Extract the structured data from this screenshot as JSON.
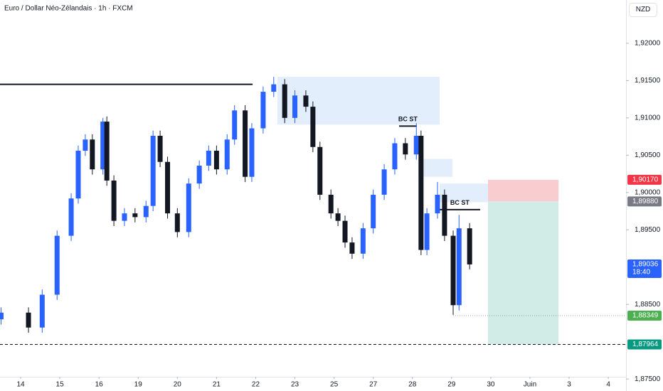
{
  "chart_data": {
    "type": "candlestick",
    "title": "Euro / Dollar Néo-Zélandais · 1h · FXCM",
    "currency": "NZD",
    "up_color": "#2962ff",
    "down_color": "#131722",
    "xlim": [
      -0.527,
      15.452
    ],
    "ylim": [
      1.8753,
      1.9258
    ],
    "xticks": [
      {
        "value": 0,
        "label": "14"
      },
      {
        "value": 1,
        "label": "15"
      },
      {
        "value": 2,
        "label": "16"
      },
      {
        "value": 3,
        "label": "19"
      },
      {
        "value": 4,
        "label": "20"
      },
      {
        "value": 5,
        "label": "21"
      },
      {
        "value": 6,
        "label": "22"
      },
      {
        "value": 7,
        "label": "23"
      },
      {
        "value": 8,
        "label": "25"
      },
      {
        "value": 9,
        "label": "27"
      },
      {
        "value": 10,
        "label": "28"
      },
      {
        "value": 11,
        "label": "29"
      },
      {
        "value": 12,
        "label": "30"
      },
      {
        "value": 13,
        "label": "Juin"
      },
      {
        "value": 14,
        "label": "3"
      },
      {
        "value": 15,
        "label": "4"
      }
    ],
    "yticks": [
      {
        "value": 1.92,
        "label": "1,92000"
      },
      {
        "value": 1.915,
        "label": "1,91500"
      },
      {
        "value": 1.91,
        "label": "1,91000"
      },
      {
        "value": 1.905,
        "label": "1,90500"
      },
      {
        "value": 1.9,
        "label": "1,90000"
      },
      {
        "value": 1.895,
        "label": "1,89500"
      },
      {
        "value": 1.885,
        "label": "1,88500"
      },
      {
        "value": 1.875,
        "label": "1,87500"
      }
    ],
    "x": [
      -0.5,
      0.2,
      0.55,
      0.93,
      1.29,
      1.47,
      1.65,
      1.83,
      2.1,
      2.2,
      2.38,
      2.65,
      2.92,
      3.2,
      3.38,
      3.56,
      3.75,
      4.0,
      4.29,
      4.56,
      4.8,
      5.0,
      5.27,
      5.46,
      5.73,
      5.9,
      6.19,
      6.46,
      6.74,
      7.0,
      7.28,
      7.46,
      7.64,
      7.92,
      8.1,
      8.28,
      8.46,
      8.74,
      9.0,
      9.28,
      9.55,
      9.82,
      10.1,
      10.22,
      10.37,
      10.64,
      10.82,
      11.04,
      11.19,
      11.46
    ],
    "open": [
      1.883,
      1.8839,
      1.8819,
      1.8863,
      1.8942,
      1.8992,
      1.9056,
      1.9071,
      1.9031,
      1.9095,
      1.9016,
      1.8962,
      1.8972,
      1.8967,
      1.8982,
      1.9076,
      1.9041,
      1.8972,
      1.8947,
      1.9012,
      1.9036,
      1.9056,
      1.9031,
      1.9071,
      1.911,
      1.9021,
      1.9086,
      1.9135,
      1.9145,
      1.91,
      1.913,
      1.9115,
      1.9061,
      1.8997,
      1.8972,
      1.8962,
      1.8933,
      1.8918,
      1.8952,
      1.8997,
      1.9031,
      1.9066,
      1.9051,
      1.9076,
      1.8923,
      1.8972,
      1.8997,
      1.8942,
      1.8849,
      1.8952
    ],
    "high": [
      1.8846,
      1.8846,
      1.887,
      1.8949,
      1.8999,
      1.9063,
      1.9078,
      1.9078,
      1.91,
      1.9102,
      1.9023,
      1.8979,
      1.8979,
      1.8989,
      1.9083,
      1.9083,
      1.9048,
      1.8979,
      1.9019,
      1.9043,
      1.9063,
      1.9063,
      1.9078,
      1.9117,
      1.9117,
      1.9093,
      1.9142,
      1.9155,
      1.9152,
      1.9137,
      1.9137,
      1.9122,
      1.9068,
      1.9004,
      1.8979,
      1.8969,
      1.894,
      1.8959,
      1.9004,
      1.9038,
      1.9073,
      1.9073,
      1.9093,
      1.9083,
      1.8979,
      1.9014,
      1.9004,
      1.8949,
      1.897,
      1.8959
    ],
    "low": [
      1.8823,
      1.8812,
      1.8812,
      1.8856,
      1.8935,
      1.8985,
      1.9049,
      1.9024,
      1.9024,
      1.9009,
      1.8955,
      1.8955,
      1.896,
      1.896,
      1.8975,
      1.9034,
      1.8965,
      1.894,
      1.894,
      1.9005,
      1.9029,
      1.9024,
      1.9024,
      1.9064,
      1.9014,
      1.9014,
      1.9079,
      1.9128,
      1.9093,
      1.9093,
      1.9108,
      1.9054,
      1.899,
      1.8965,
      1.8955,
      1.8926,
      1.8911,
      1.8911,
      1.8945,
      1.899,
      1.9024,
      1.9044,
      1.9044,
      1.8916,
      1.8916,
      1.8965,
      1.8935,
      1.8836,
      1.8842,
      1.8897
    ],
    "close": [
      1.8839,
      1.8819,
      1.8863,
      1.8942,
      1.8992,
      1.9056,
      1.9071,
      1.9031,
      1.9095,
      1.9016,
      1.8962,
      1.8972,
      1.8967,
      1.8982,
      1.9076,
      1.9041,
      1.8972,
      1.8947,
      1.9012,
      1.9036,
      1.9056,
      1.9031,
      1.9071,
      1.911,
      1.9021,
      1.9086,
      1.9135,
      1.9145,
      1.91,
      1.913,
      1.9115,
      1.9061,
      1.8997,
      1.8972,
      1.8962,
      1.8933,
      1.8918,
      1.8952,
      1.8997,
      1.9031,
      1.9066,
      1.9051,
      1.9076,
      1.8923,
      1.8972,
      1.8997,
      1.8942,
      1.8849,
      1.8952,
      1.89036
    ],
    "zones": [
      {
        "x": [
          6.555,
          10.695
        ],
        "y": [
          1.9091,
          1.9155
        ],
        "color": "#e3eefc"
      },
      {
        "x": [
          10.15,
          11.02
        ],
        "y": [
          1.9021,
          1.9045
        ],
        "color": "#e3eefc"
      },
      {
        "x": [
          10.695,
          11.93
        ],
        "y": [
          1.8987,
          1.9012
        ],
        "color": "#e3eefc"
      },
      {
        "x": [
          11.93,
          13.73
        ],
        "y": [
          1.8988,
          1.9017
        ],
        "color": "#f9cdd0"
      },
      {
        "x": [
          11.93,
          13.73
        ],
        "y": [
          1.87964,
          1.8988
        ],
        "color": "#d1ece6"
      }
    ],
    "lines": [
      {
        "x": [
          -0.527,
          5.92
        ],
        "y": 1.9145,
        "style": "solid"
      },
      {
        "x": [
          9.66,
          10.11
        ],
        "y": 1.9089,
        "style": "solid"
      },
      {
        "x": [
          10.695,
          11.73
        ],
        "y": 1.8977,
        "style": "solid"
      },
      {
        "x": [
          11.04,
          15.452
        ],
        "y": 1.88349,
        "style": "dotted"
      },
      {
        "x": [
          -0.527,
          15.452
        ],
        "y": 1.87964,
        "style": "dashed"
      }
    ],
    "annotations": [
      {
        "text": "BC ST",
        "x": 9.885,
        "y": 1.9098
      },
      {
        "text": "BC ST",
        "x": 11.21,
        "y": 1.8986
      }
    ],
    "price_labels": [
      {
        "value": 1.9017,
        "label": "1,90170",
        "color": "#f23645"
      },
      {
        "value": 1.8988,
        "label": "1,89880",
        "color": "#787b86"
      },
      {
        "value": 1.89036,
        "label": "1,89036",
        "color": "#2962ff",
        "countdown": "18:40"
      },
      {
        "value": 1.88349,
        "label": "1,88349",
        "color": "#4caf50"
      },
      {
        "value": 1.87964,
        "label": "1,87964",
        "color": "#089981"
      }
    ]
  }
}
